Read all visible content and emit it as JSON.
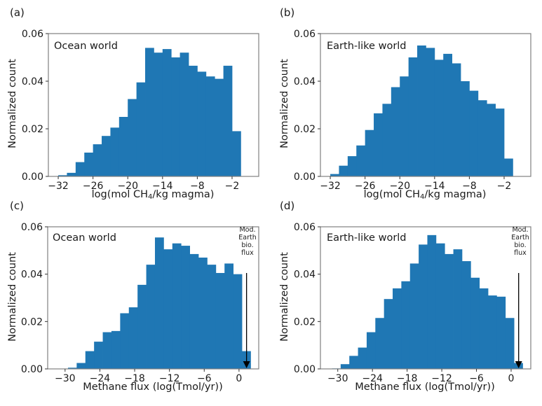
{
  "figure": {
    "bar_color": "#1f77b4",
    "axis_color": "#808080"
  },
  "chart_data": [
    {
      "panel": "(a)",
      "type": "bar",
      "title": "Ocean world",
      "xlabel_pre": "log(mol CH",
      "xlabel_sub": "4",
      "xlabel_post": "/kg magma)",
      "ylabel": "Normalized count",
      "xlim": [
        -33.7,
        2.6
      ],
      "ylim": [
        0,
        0.06
      ],
      "xticks": [
        -32,
        -26,
        -20,
        -14,
        -8,
        -2
      ],
      "xtick_labels": [
        "−32",
        "−26",
        "−20",
        "−14",
        "−8",
        "−2"
      ],
      "yticks": [
        0.0,
        0.02,
        0.04,
        0.06
      ],
      "ytick_labels": [
        "0.00",
        "0.02",
        "0.04",
        "0.06"
      ],
      "bin_start": -32,
      "bin_width": 1.5,
      "values": [
        0.0005,
        0.0015,
        0.006,
        0.01,
        0.0135,
        0.017,
        0.0205,
        0.025,
        0.0325,
        0.0395,
        0.054,
        0.052,
        0.0535,
        0.05,
        0.052,
        0.0465,
        0.044,
        0.042,
        0.041,
        0.0465,
        0.019
      ],
      "grid": false
    },
    {
      "panel": "(b)",
      "type": "bar",
      "title": "Earth-like world",
      "xlabel_pre": "log(mol CH",
      "xlabel_sub": "4",
      "xlabel_post": "/kg magma)",
      "ylabel": "Normalized count",
      "xlim": [
        -33.7,
        2.6
      ],
      "ylim": [
        0,
        0.06
      ],
      "xticks": [
        -32,
        -26,
        -20,
        -14,
        -8,
        -2
      ],
      "xtick_labels": [
        "−32",
        "−26",
        "−20",
        "−14",
        "−8",
        "−2"
      ],
      "yticks": [
        0.0,
        0.02,
        0.04,
        0.06
      ],
      "ytick_labels": [
        "0.00",
        "0.02",
        "0.04",
        "0.06"
      ],
      "bin_start": -32,
      "bin_width": 1.5,
      "values": [
        0.001,
        0.0045,
        0.0085,
        0.013,
        0.0195,
        0.0265,
        0.0305,
        0.0375,
        0.042,
        0.05,
        0.055,
        0.054,
        0.049,
        0.0515,
        0.0475,
        0.04,
        0.036,
        0.032,
        0.0305,
        0.0285,
        0.0075
      ],
      "grid": false
    },
    {
      "panel": "(c)",
      "type": "bar",
      "title": "Ocean world",
      "xlabel": "Methane flux (log(Tmol/yr))",
      "ylabel": "Normalized count",
      "xlim": [
        -33.0,
        3.4
      ],
      "ylim": [
        0,
        0.06
      ],
      "xticks": [
        -30,
        -24,
        -18,
        -12,
        -6,
        0
      ],
      "xtick_labels": [
        "−30",
        "−24",
        "−18",
        "−12",
        "−6",
        "0"
      ],
      "yticks": [
        0.0,
        0.02,
        0.04,
        0.06
      ],
      "ytick_labels": [
        "0.00",
        "0.02",
        "0.04",
        "0.06"
      ],
      "bin_start": -29.5,
      "bin_width": 1.5,
      "values": [
        0.0005,
        0.0025,
        0.0075,
        0.0115,
        0.0155,
        0.016,
        0.0235,
        0.026,
        0.0355,
        0.044,
        0.0555,
        0.0505,
        0.053,
        0.052,
        0.0485,
        0.047,
        0.044,
        0.0405,
        0.0445,
        0.04,
        0.0075
      ],
      "annotation": {
        "text": [
          "Mod.",
          "Earth",
          "bio.",
          "flux"
        ],
        "x": 1.3,
        "arrow_from_y": 0.0405,
        "arrow_to_y": 0.0
      },
      "grid": false
    },
    {
      "panel": "(d)",
      "type": "bar",
      "title": "Earth-like world",
      "xlabel": "Methane flux (log(Tmol/yr))",
      "ylabel": "Normalized count",
      "xlim": [
        -33.0,
        3.4
      ],
      "ylim": [
        0,
        0.06
      ],
      "xticks": [
        -30,
        -24,
        -18,
        -12,
        -6,
        0
      ],
      "xtick_labels": [
        "−30",
        "−24",
        "−18",
        "−12",
        "−6",
        "0"
      ],
      "yticks": [
        0.0,
        0.02,
        0.04,
        0.06
      ],
      "ytick_labels": [
        "0.00",
        "0.02",
        "0.04",
        "0.06"
      ],
      "bin_start": -31,
      "bin_width": 1.5,
      "values": [
        0.0002,
        0.002,
        0.0055,
        0.009,
        0.0155,
        0.0215,
        0.0295,
        0.034,
        0.037,
        0.0445,
        0.0525,
        0.0565,
        0.053,
        0.0485,
        0.0505,
        0.0455,
        0.0385,
        0.034,
        0.031,
        0.0305,
        0.0215,
        0.0025
      ],
      "annotation": {
        "text": [
          "Mod.",
          "Earth",
          "bio.",
          "flux"
        ],
        "x": 1.3,
        "arrow_from_y": 0.0405,
        "arrow_to_y": 0.0
      },
      "grid": false
    }
  ]
}
